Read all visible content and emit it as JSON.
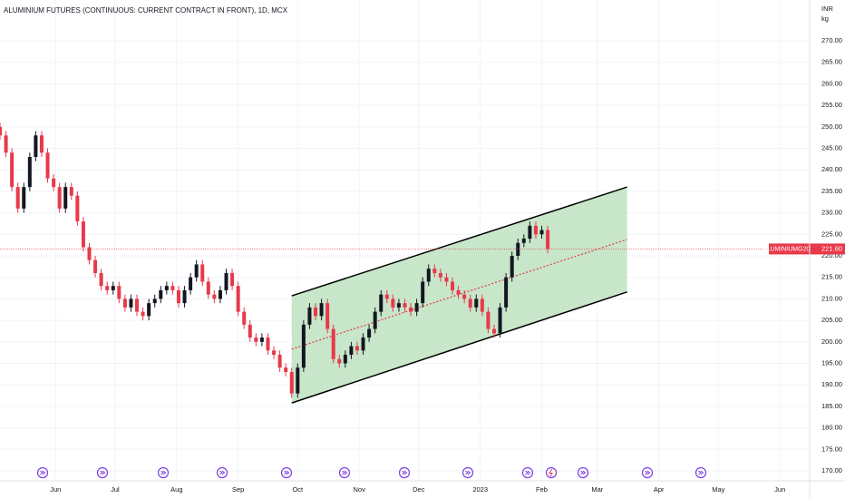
{
  "chart_data": {
    "type": "candlestick",
    "title": "ALUMINIUM FUTURES (CONTINUOUS: CURRENT CONTRACT IN FRONT), 1D, MCX",
    "currency": "INR",
    "unit": "kg",
    "up_color": "#131722",
    "down_color": "#e8394a",
    "x": [
      0,
      3,
      6,
      9,
      12,
      15,
      18,
      21,
      24,
      27,
      30,
      33,
      36,
      39,
      42,
      45,
      48,
      51,
      54,
      57,
      60,
      63,
      66,
      69,
      72,
      75,
      78,
      81,
      84,
      87,
      90,
      93,
      96,
      99,
      102,
      105,
      108,
      111,
      114,
      117,
      120,
      123,
      126,
      129,
      132,
      135,
      138,
      141,
      144,
      147,
      150,
      153,
      156,
      159,
      162,
      165,
      168,
      171,
      174,
      177,
      180,
      183,
      186,
      189,
      192,
      195,
      198,
      201,
      204,
      207,
      210,
      213,
      216,
      219,
      222,
      225,
      228,
      231,
      234,
      237,
      240,
      243,
      246,
      249,
      252,
      255,
      258,
      261,
      264,
      267,
      270,
      273,
      276
    ],
    "open": [
      250,
      248,
      244,
      236,
      231,
      236,
      243,
      248,
      244,
      238,
      236,
      231,
      236,
      234,
      228,
      222,
      219,
      216,
      213,
      212,
      213,
      210,
      208,
      210,
      207,
      206,
      209,
      210,
      212,
      213,
      212,
      209,
      212,
      215,
      218,
      214,
      211,
      210,
      212,
      216,
      213,
      207,
      204,
      201,
      200,
      201,
      198,
      197,
      194,
      193,
      188,
      194,
      204,
      208,
      206,
      209,
      203,
      196,
      195,
      197,
      199,
      198,
      201,
      203,
      207,
      211,
      210,
      208,
      209,
      208,
      207,
      209,
      214,
      217,
      216,
      215,
      214,
      212,
      211,
      210,
      208,
      210,
      207,
      203,
      202,
      208,
      215,
      220,
      223,
      224,
      227,
      225,
      226
    ],
    "high": [
      251,
      249,
      245,
      237,
      237,
      244,
      249,
      249,
      245,
      239,
      237,
      237,
      237,
      235,
      229,
      223,
      220,
      217,
      214,
      214,
      214,
      211,
      211,
      211,
      208,
      210,
      211,
      213,
      214,
      214,
      213,
      213,
      216,
      219,
      219,
      215,
      212,
      213,
      217,
      217,
      214,
      208,
      205,
      202,
      202,
      202,
      199,
      198,
      195,
      194,
      195,
      205,
      209,
      209,
      210,
      210,
      204,
      197,
      198,
      200,
      200,
      202,
      204,
      208,
      212,
      212,
      211,
      210,
      210,
      209,
      210,
      215,
      218,
      218,
      217,
      216,
      215,
      213,
      212,
      211,
      211,
      211,
      208,
      204,
      209,
      216,
      221,
      224,
      225,
      228,
      228,
      227,
      227
    ],
    "low": [
      247,
      243,
      235,
      230,
      230,
      235,
      242,
      243,
      237,
      235,
      230,
      230,
      233,
      227,
      221,
      218,
      215,
      212,
      211,
      211,
      209,
      207,
      207,
      206,
      205,
      205,
      208,
      209,
      211,
      211,
      208,
      208,
      211,
      214,
      213,
      210,
      209,
      209,
      211,
      212,
      206,
      203,
      200,
      199,
      199,
      197,
      196,
      193,
      192,
      187,
      187,
      193,
      203,
      205,
      205,
      202,
      195,
      194,
      194,
      196,
      197,
      197,
      200,
      202,
      206,
      209,
      207,
      207,
      207,
      206,
      206,
      208,
      213,
      215,
      214,
      213,
      211,
      210,
      209,
      207,
      207,
      206,
      202,
      201,
      201,
      207,
      214,
      219,
      222,
      223,
      224,
      224,
      220.6
    ],
    "close": [
      248,
      244,
      236,
      231,
      236,
      243,
      248,
      244,
      238,
      236,
      231,
      236,
      234,
      228,
      222,
      219,
      216,
      213,
      212,
      213,
      210,
      208,
      210,
      207,
      206,
      209,
      210,
      212,
      213,
      212,
      209,
      212,
      215,
      218,
      214,
      211,
      210,
      212,
      216,
      213,
      207,
      204,
      201,
      200,
      201,
      198,
      197,
      194,
      193,
      188,
      194,
      204,
      208,
      206,
      209,
      203,
      196,
      195,
      197,
      199,
      198,
      201,
      203,
      207,
      211,
      210,
      208,
      209,
      208,
      207,
      209,
      214,
      217,
      216,
      215,
      214,
      212,
      211,
      210,
      208,
      210,
      207,
      203,
      202,
      208,
      215,
      220,
      223,
      224,
      227,
      225,
      226,
      221.6
    ],
    "channel": {
      "x": [
        147,
        316
      ],
      "upper": [
        210.7,
        236
      ],
      "lower": [
        185.8,
        211.6
      ],
      "mid": [
        198.3,
        223.8
      ],
      "fill": "#c8e6c9",
      "line_color": "#000000",
      "mid_color": "#e8394a"
    },
    "last_price": {
      "value": 221.6,
      "label": "221.60"
    },
    "symbol": "ALUMINIUMG2023",
    "xlim": [
      0,
      408
    ],
    "xticks": [
      {
        "value": 28,
        "label": "Jun"
      },
      {
        "value": 58,
        "label": "Jul"
      },
      {
        "value": 89,
        "label": "Aug"
      },
      {
        "value": 120,
        "label": "Sep"
      },
      {
        "value": 150,
        "label": "Oct"
      },
      {
        "value": 181,
        "label": "Nov"
      },
      {
        "value": 211,
        "label": "Dec"
      },
      {
        "value": 242,
        "label": "2023"
      },
      {
        "value": 273,
        "label": "Feb"
      },
      {
        "value": 301,
        "label": "Mar"
      },
      {
        "value": 332,
        "label": "Apr"
      },
      {
        "value": 362,
        "label": "May"
      },
      {
        "value": 393,
        "label": "Jun"
      }
    ],
    "ylim": [
      170,
      270
    ],
    "yticks": [
      {
        "value": 170,
        "label": "170.00"
      },
      {
        "value": 175,
        "label": "175.00"
      },
      {
        "value": 180,
        "label": "180.00"
      },
      {
        "value": 185,
        "label": "185.00"
      },
      {
        "value": 190,
        "label": "190.00"
      },
      {
        "value": 195,
        "label": "195.00"
      },
      {
        "value": 200,
        "label": "200.00"
      },
      {
        "value": 205,
        "label": "205.00"
      },
      {
        "value": 210,
        "label": "210.00"
      },
      {
        "value": 215,
        "label": "215.00"
      },
      {
        "value": 220,
        "label": "220.00"
      },
      {
        "value": 225,
        "label": "225.00"
      },
      {
        "value": 230,
        "label": "230.00"
      },
      {
        "value": 235,
        "label": "235.00"
      },
      {
        "value": 240,
        "label": "240.00"
      },
      {
        "value": 245,
        "label": "245.00"
      },
      {
        "value": 250,
        "label": "250.00"
      },
      {
        "value": 255,
        "label": "255.00"
      },
      {
        "value": 260,
        "label": "260.00"
      },
      {
        "value": 265,
        "label": "265.00"
      },
      {
        "value": 270,
        "label": "270.00"
      }
    ],
    "grid": true
  }
}
